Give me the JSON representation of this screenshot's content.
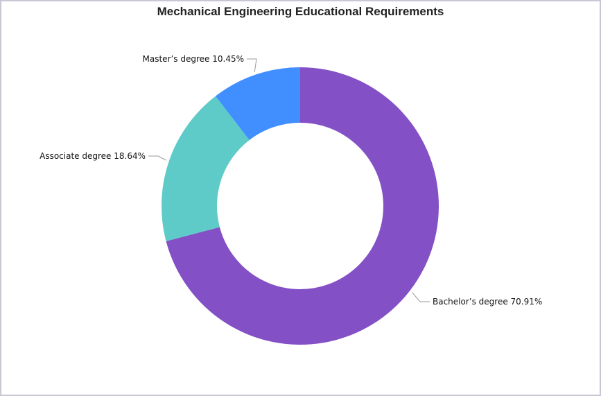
{
  "chart_data": {
    "type": "pie",
    "variant": "donut",
    "title": "Mechanical Engineering Educational Requirements",
    "slices": [
      {
        "label": "Bachelor's degree",
        "value": 70.91,
        "display": "Bachelor’s degree 70.91%",
        "color": "#8350c6"
      },
      {
        "label": "Associate degree",
        "value": 18.64,
        "display": "Associate degree 18.64%",
        "color": "#5ecbc8"
      },
      {
        "label": "Master's degree",
        "value": 10.45,
        "display": "Master’s degree 10.45%",
        "color": "#418fff"
      }
    ],
    "legend": "none",
    "data_labels": "outside-with-leader-lines"
  }
}
